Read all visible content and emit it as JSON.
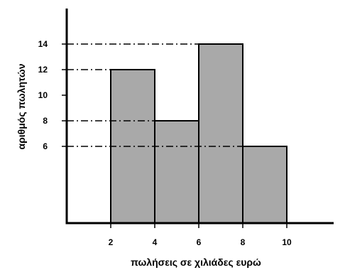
{
  "chart_data": {
    "type": "bar",
    "title": "",
    "xlabel": "πωλήσεις σε χιλιάδες ευρώ",
    "ylabel": "αριθμός πωλητών",
    "xlim": [
      0,
      13
    ],
    "ylim": [
      0,
      16
    ],
    "x_ticks": [
      "2",
      "4",
      "6",
      "8",
      "10"
    ],
    "y_ticks": [
      "6",
      "8",
      "10",
      "12",
      "14"
    ],
    "bins": [
      {
        "from": 2,
        "to": 4,
        "value": 12
      },
      {
        "from": 4,
        "to": 6,
        "value": 8
      },
      {
        "from": 6,
        "to": 8,
        "value": 14
      },
      {
        "from": 8,
        "to": 10,
        "value": 6
      }
    ],
    "reference_lines": [
      6,
      8,
      12,
      14
    ],
    "bar_color": "#a9a9a9",
    "edge_color": "#000000",
    "grid": false,
    "legend": "none"
  }
}
